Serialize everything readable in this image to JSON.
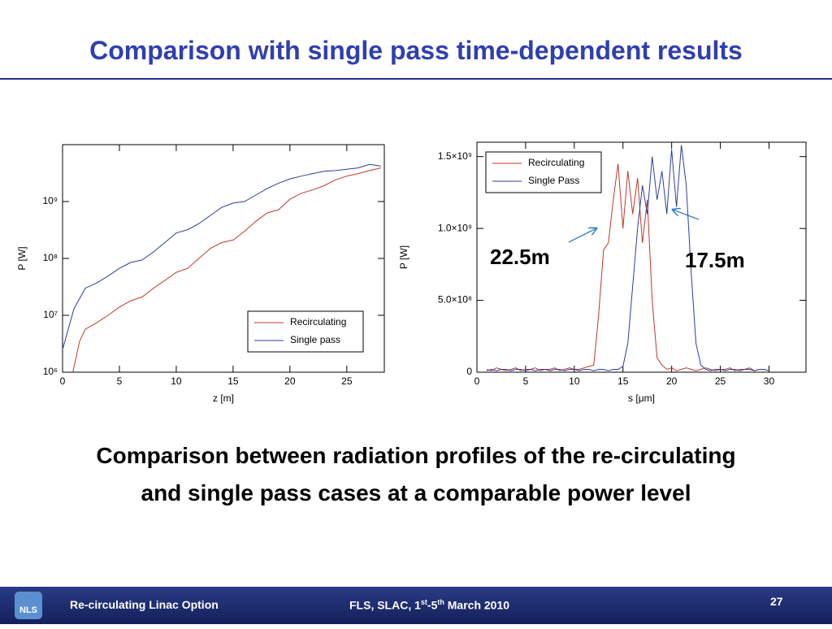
{
  "slide": {
    "title": "Comparison with single pass time-dependent results",
    "caption": "Comparison between radiation profiles of the re-circulating and single pass cases at a comparable power level",
    "footer": {
      "logo": "NLS",
      "left": "Re-circulating Linac Option",
      "event": [
        "FLS, SLAC, 1",
        "st",
        "-5",
        "th",
        " March 2010"
      ],
      "page": "27"
    }
  },
  "chart_data": [
    {
      "type": "line",
      "xlabel": "z [m]",
      "ylabel": "P [W]",
      "log_y": true,
      "xlim": [
        0,
        28.3
      ],
      "xticks": [
        0,
        5,
        10,
        15,
        20,
        25
      ],
      "ylim": [
        1000000,
        10000000000
      ],
      "yticks": [
        {
          "value": 1000000,
          "label": "10⁶"
        },
        {
          "value": 10000000,
          "label": "10⁷"
        },
        {
          "value": 100000000,
          "label": "10⁸"
        },
        {
          "value": 1000000000,
          "label": "10⁹"
        }
      ],
      "legend": "lower right",
      "series": [
        {
          "name": "Recirculating",
          "color": "#c0392b",
          "x": [
            0.9,
            1.5,
            2,
            3,
            4,
            5,
            6,
            7,
            8,
            9,
            10,
            11,
            12,
            13,
            14,
            15,
            16,
            17,
            18,
            19,
            20,
            21,
            22,
            23,
            24,
            25,
            26,
            27,
            28
          ],
          "values": [
            1000000.0,
            3500000.0,
            5700000.0,
            7400000.0,
            10000000.0,
            14000000.0,
            18000000.0,
            21000000.0,
            30000000.0,
            41000000.0,
            57000000.0,
            67000000.0,
            100000000.0,
            150000000.0,
            190000000.0,
            210000000.0,
            300000000.0,
            450000000.0,
            630000000.0,
            720000000.0,
            1100000000.0,
            1400000000.0,
            1600000000.0,
            1900000000.0,
            2400000000.0,
            2800000000.0,
            3100000000.0,
            3500000000.0,
            3900000000.0
          ]
        },
        {
          "name": "Single pass",
          "color": "#2c3e9e",
          "x": [
            0,
            0.5,
            1,
            2,
            3,
            4,
            5,
            6,
            7,
            8,
            9,
            10,
            11,
            12,
            13,
            14,
            15,
            16,
            17,
            18,
            19,
            20,
            21,
            22,
            23,
            24,
            25,
            26,
            27,
            28
          ],
          "values": [
            2500000.0,
            5700000.0,
            13000000.0,
            30000000.0,
            37000000.0,
            49000000.0,
            67000000.0,
            85000000.0,
            94000000.0,
            130000000.0,
            190000000.0,
            280000000.0,
            320000000.0,
            410000000.0,
            570000000.0,
            790000000.0,
            940000000.0,
            1000000000.0,
            1300000000.0,
            1700000000.0,
            2100000000.0,
            2500000000.0,
            2800000000.0,
            3100000000.0,
            3400000000.0,
            3500000000.0,
            3700000000.0,
            3900000000.0,
            4500000000.0,
            4200000000.0
          ]
        }
      ]
    },
    {
      "type": "line",
      "xlabel": "s [μm]",
      "ylabel": "P [W]",
      "xlim": [
        0,
        33.8
      ],
      "xticks": [
        0,
        5,
        10,
        15,
        20,
        25,
        30
      ],
      "ylim": [
        0,
        1600000000
      ],
      "yticks": [
        0,
        {
          "value": 500000000,
          "label": "5.0×10⁸"
        },
        {
          "value": 1000000000,
          "label": "1.0×10⁹"
        },
        {
          "value": 1500000000,
          "label": "1.5×10⁹"
        }
      ],
      "legend": "upper left",
      "annotations": [
        {
          "text": "22.5m"
        },
        {
          "text": "17.5m"
        }
      ],
      "x": [
        1,
        1.5,
        2,
        2.5,
        3,
        3.5,
        4,
        4.5,
        5,
        5.5,
        6,
        6.5,
        7,
        7.5,
        8,
        8.5,
        9,
        9.5,
        10,
        10.5,
        11,
        11.5,
        12,
        12.5,
        13,
        13.5,
        14,
        14.5,
        15,
        15.5,
        16,
        16.5,
        17,
        17.5,
        18,
        18.5,
        19,
        19.5,
        20,
        20.5,
        21,
        21.5,
        22,
        22.5,
        23,
        23.5,
        24,
        24.5,
        25,
        25.5,
        26,
        26.5,
        27,
        27.5,
        28,
        28.5,
        29,
        29.5,
        30
      ],
      "series": [
        {
          "name": "Recirculating",
          "color": "#c0392b",
          "values": [
            20000000.0,
            10000000.0,
            30000000.0,
            20000000.0,
            10000000.0,
            20000000.0,
            30000000.0,
            10000000.0,
            20000000.0,
            20000000.0,
            30000000.0,
            10000000.0,
            20000000.0,
            20000000.0,
            30000000.0,
            10000000.0,
            20000000.0,
            30000000.0,
            20000000.0,
            20000000.0,
            30000000.0,
            40000000.0,
            50000000.0,
            400000000.0,
            850000000.0,
            900000000.0,
            1200000000.0,
            1450000000.0,
            1000000000.0,
            1400000000.0,
            1100000000.0,
            1350000000.0,
            900000000.0,
            1200000000.0,
            500000000.0,
            100000000.0,
            50000000.0,
            20000000.0,
            30000000.0,
            10000000.0,
            20000000.0,
            30000000.0,
            20000000.0,
            10000000.0,
            20000000.0,
            30000000.0,
            20000000.0,
            10000000.0,
            20000000.0,
            20000000.0,
            30000000.0,
            10000000.0,
            20000000.0,
            20000000.0,
            30000000.0,
            10000000.0,
            20000000.0,
            20000000.0,
            10000000.0
          ]
        },
        {
          "name": "Single Pass",
          "color": "#2c3e9e",
          "values": [
            10000000.0,
            20000000.0,
            10000000.0,
            20000000.0,
            20000000.0,
            10000000.0,
            20000000.0,
            20000000.0,
            10000000.0,
            20000000.0,
            10000000.0,
            20000000.0,
            20000000.0,
            10000000.0,
            20000000.0,
            20000000.0,
            10000000.0,
            20000000.0,
            20000000.0,
            10000000.0,
            20000000.0,
            20000000.0,
            10000000.0,
            20000000.0,
            20000000.0,
            10000000.0,
            20000000.0,
            20000000.0,
            40000000.0,
            200000000.0,
            600000000.0,
            1000000000.0,
            1300000000.0,
            1100000000.0,
            1500000000.0,
            1200000000.0,
            1400000000.0,
            1100000000.0,
            1550000000.0,
            1150000000.0,
            1580000000.0,
            1300000000.0,
            700000000.0,
            200000000.0,
            50000000.0,
            20000000.0,
            10000000.0,
            20000000.0,
            20000000.0,
            10000000.0,
            20000000.0,
            20000000.0,
            10000000.0,
            20000000.0,
            20000000.0,
            10000000.0,
            20000000.0,
            20000000.0,
            10000000.0
          ]
        }
      ]
    }
  ]
}
